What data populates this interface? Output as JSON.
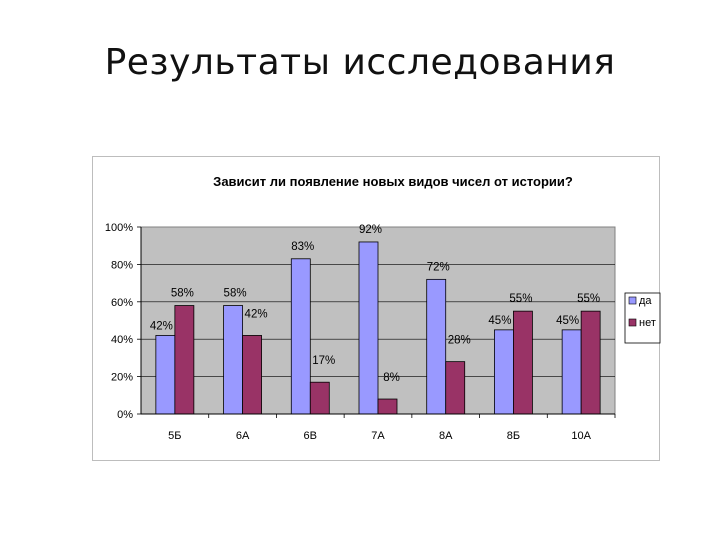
{
  "slide": {
    "title": "Результаты исследования"
  },
  "chart_data": {
    "type": "bar",
    "title": "Зависит ли появление новых видов чисел от истории?",
    "categories": [
      "5Б",
      "6А",
      "6В",
      "7А",
      "8А",
      "8Б",
      "10А"
    ],
    "series": [
      {
        "name": "да",
        "values": [
          42,
          58,
          83,
          92,
          72,
          45,
          45
        ],
        "labels": [
          "42%",
          "58%",
          "83%",
          "92%",
          "72%",
          "45%",
          "45%"
        ],
        "color": "#9999ff"
      },
      {
        "name": "нет",
        "values": [
          58,
          42,
          17,
          8,
          28,
          55,
          55
        ],
        "labels": [
          "58%",
          "42%",
          "17%",
          "8%",
          "28%",
          "55%",
          "55%"
        ],
        "color": "#993366"
      }
    ],
    "yticks": [
      "0%",
      "20%",
      "40%",
      "60%",
      "80%",
      "100%"
    ],
    "ylim": [
      0,
      100
    ],
    "xlabel": "",
    "ylabel": "",
    "grid": true,
    "plot_bg": "#c0c0c0",
    "legend": "right"
  }
}
